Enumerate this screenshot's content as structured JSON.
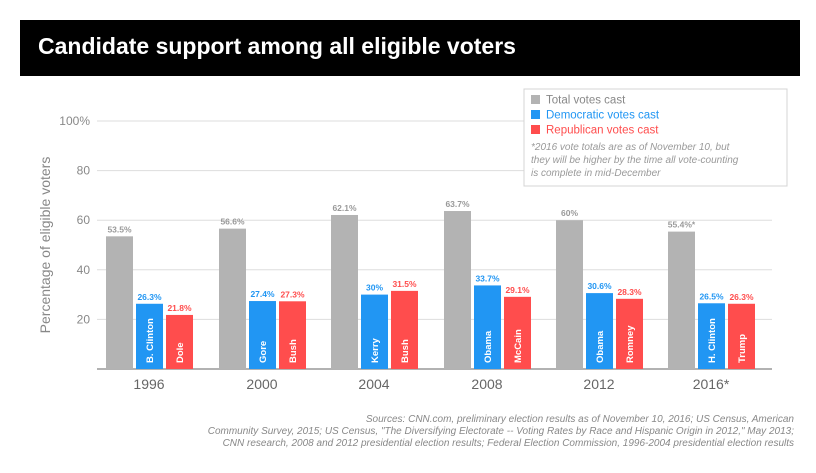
{
  "title": "Candidate support among all eligible voters",
  "colors": {
    "total": "#b3b3b3",
    "dem": "#2196f3",
    "rep": "#ff4d4d"
  },
  "legend": {
    "items": [
      {
        "key": "total",
        "label": "Total votes cast"
      },
      {
        "key": "dem",
        "label": "Democratic votes cast"
      },
      {
        "key": "rep",
        "label": "Republican votes cast"
      }
    ],
    "note_lines": [
      "*2016 vote totals are as of November 10, but",
      "they will be higher by the time all vote-counting",
      "is complete in mid-December"
    ]
  },
  "chart_data": {
    "type": "bar",
    "ylabel": "Percentage of eligible voters",
    "ylim": [
      0,
      100
    ],
    "yticks": [
      "20",
      "40",
      "60",
      "80",
      "100%"
    ],
    "grid": true,
    "legend_position": "top-right",
    "categories": [
      "1996",
      "2000",
      "2004",
      "2008",
      "2012",
      "2016*"
    ],
    "series": [
      {
        "name": "Total votes cast",
        "key": "total",
        "values": [
          53.5,
          56.6,
          62.1,
          63.7,
          60,
          55.4
        ],
        "labels": [
          "53.5%",
          "56.6%",
          "62.1%",
          "63.7%",
          "60%",
          "55.4%*"
        ]
      },
      {
        "name": "Democratic votes cast",
        "key": "dem",
        "values": [
          26.3,
          27.4,
          30,
          33.7,
          30.6,
          26.5
        ],
        "labels": [
          "26.3%",
          "27.4%",
          "30%",
          "33.7%",
          "30.6%",
          "26.5%"
        ],
        "candidates": [
          "B. Clinton",
          "Gore",
          "Kerry",
          "Obama",
          "Obama",
          "H. Clinton"
        ]
      },
      {
        "name": "Republican votes cast",
        "key": "rep",
        "values": [
          21.8,
          27.3,
          31.5,
          29.1,
          28.3,
          26.3
        ],
        "labels": [
          "21.8%",
          "27.3%",
          "31.5%",
          "29.1%",
          "28.3%",
          "26.3%"
        ],
        "candidates": [
          "Dole",
          "Bush",
          "Bush",
          "McCain",
          "Romney",
          "Trump"
        ]
      }
    ]
  },
  "sources_lines": [
    "Sources: CNN.com, preliminary election results as of November 10, 2016; US Census, American",
    "Community Survey, 2015; US Census, \"The Diversifying Electorate -- Voting Rates by Race and Hispanic Origin in 2012,\" May 2013;",
    "CNN research, 2008 and 2012 presidential election results; Federal Election Commission, 1996-2004 presidential election results"
  ]
}
